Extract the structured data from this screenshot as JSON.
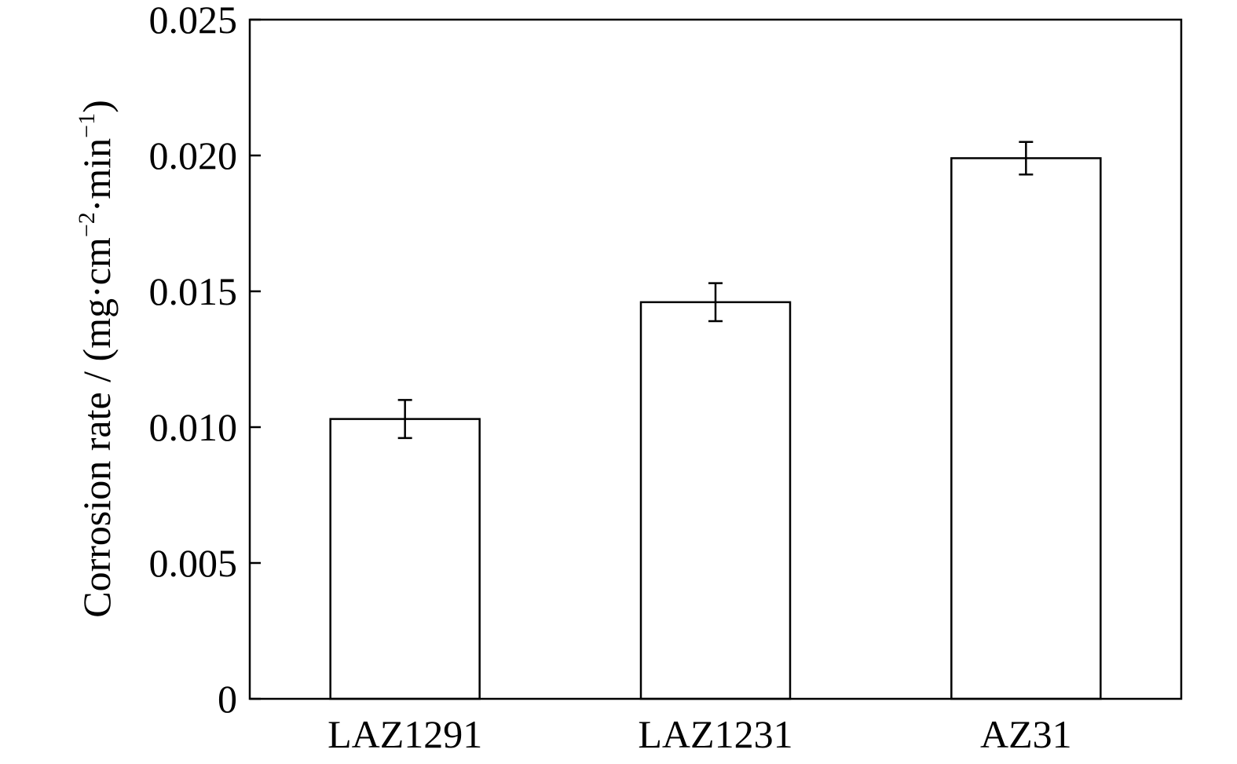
{
  "chart_data": {
    "type": "bar",
    "categories": [
      "LAZ1291",
      "LAZ1231",
      "AZ31"
    ],
    "values": [
      0.0103,
      0.0146,
      0.0199
    ],
    "error": [
      0.0007,
      0.0007,
      0.0006
    ],
    "ylabel": {
      "main": "Corrosion rate / (mg·cm",
      "exp1": "−2",
      "mid": "·min",
      "exp2": "−1",
      "end": ")"
    },
    "ylim": [
      0,
      0.025
    ],
    "yticks": [
      "0",
      "0.005",
      "0.010",
      "0.015",
      "0.020",
      "0.025"
    ],
    "ytick_values": [
      0,
      0.005,
      0.01,
      0.015,
      0.02,
      0.025
    ],
    "grid": false,
    "legend": "none",
    "colors": {
      "bar_fill": "#ffffff",
      "bar_stroke": "#000000",
      "axis": "#000000",
      "error": "#000000"
    }
  }
}
